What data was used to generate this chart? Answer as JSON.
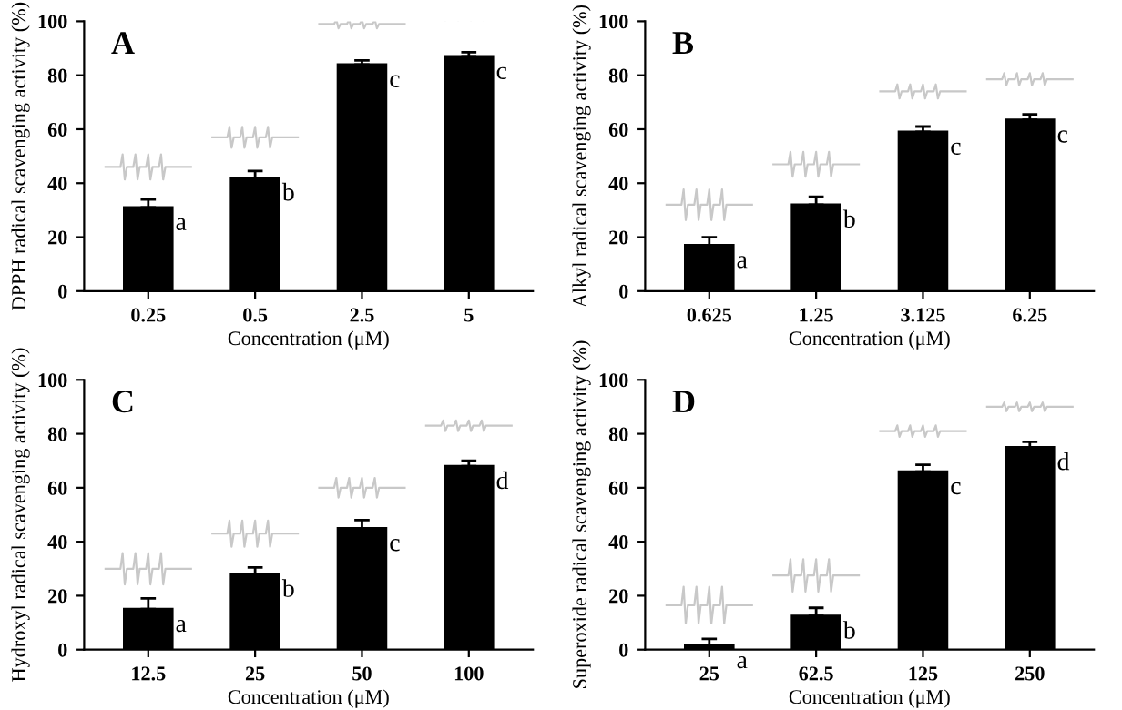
{
  "chart_data": [
    {
      "type": "bar",
      "title": "A",
      "xlabel": "Concentration (μM)",
      "ylabel": "DPPH radical scavenging activity (%)",
      "categories": [
        "0.25",
        "0.5",
        "2.5",
        "5"
      ],
      "values": [
        31,
        42,
        84,
        87
      ],
      "errors": [
        [
          31,
          34
        ],
        [
          42,
          44.5
        ],
        [
          84,
          85.5
        ],
        [
          87,
          88.5
        ]
      ],
      "color": "#000000",
      "ylim": [
        0,
        100
      ],
      "yticks": [
        0,
        20,
        40,
        60,
        80,
        100
      ],
      "grid": false,
      "legend": false,
      "annotations": [
        {
          "text": "a",
          "x": "0.25",
          "y": 31
        },
        {
          "text": "b",
          "x": "0.5",
          "y": 42
        },
        {
          "text": "c",
          "x": "2.5",
          "y": 84
        },
        {
          "text": "c",
          "x": "5",
          "y": 87
        }
      ]
    },
    {
      "type": "bar",
      "title": "B",
      "xlabel": "Concentration (μM)",
      "ylabel": "Alkyl radical scavenging activity (%)",
      "categories": [
        "0.625",
        "1.25",
        "3.125",
        "6.25"
      ],
      "values": [
        17,
        32,
        59,
        63.5
      ],
      "errors": [
        [
          17,
          20
        ],
        [
          32,
          35
        ],
        [
          59,
          61
        ],
        [
          63.5,
          65.5
        ]
      ],
      "color": "#000000",
      "ylim": [
        0,
        100
      ],
      "yticks": [
        0,
        20,
        40,
        60,
        80,
        100
      ],
      "grid": false,
      "legend": false,
      "annotations": [
        {
          "text": "a",
          "x": "0.625",
          "y": 17
        },
        {
          "text": "b",
          "x": "1.25",
          "y": 32
        },
        {
          "text": "c",
          "x": "3.125",
          "y": 59
        },
        {
          "text": "c",
          "x": "6.25",
          "y": 63.5
        }
      ]
    },
    {
      "type": "bar",
      "title": "C",
      "xlabel": "Concentration (μM)",
      "ylabel": "Hydroxyl radical scavenging activity (%)",
      "categories": [
        "12.5",
        "25",
        "50",
        "100"
      ],
      "values": [
        15,
        28,
        45,
        68
      ],
      "errors": [
        [
          15,
          19
        ],
        [
          28,
          30.5
        ],
        [
          45,
          48
        ],
        [
          68,
          70
        ]
      ],
      "color": "#000000",
      "ylim": [
        0,
        100
      ],
      "yticks": [
        0,
        20,
        40,
        60,
        80,
        100
      ],
      "grid": false,
      "legend": false,
      "annotations": [
        {
          "text": "a",
          "x": "12.5",
          "y": 15
        },
        {
          "text": "b",
          "x": "25",
          "y": 28
        },
        {
          "text": "c",
          "x": "50",
          "y": 45
        },
        {
          "text": "d",
          "x": "100",
          "y": 68
        }
      ]
    },
    {
      "type": "bar",
      "title": "D",
      "xlabel": "Concentration (μM)",
      "ylabel": "Superoxide radical scavenging activity (%)",
      "categories": [
        "25",
        "62.5",
        "125",
        "250"
      ],
      "values": [
        1.5,
        12.5,
        66,
        75
      ],
      "errors": [
        [
          1.5,
          4
        ],
        [
          12.5,
          15.5
        ],
        [
          66,
          68.5
        ],
        [
          75,
          77
        ]
      ],
      "color": "#000000",
      "ylim": [
        0,
        100
      ],
      "yticks": [
        0,
        20,
        40,
        60,
        80,
        100
      ],
      "grid": false,
      "legend": false,
      "annotations": [
        {
          "text": "a",
          "x": "25",
          "y": 1.5
        },
        {
          "text": "b",
          "x": "62.5",
          "y": 12.5
        },
        {
          "text": "c",
          "x": "125",
          "y": 66
        },
        {
          "text": "d",
          "x": "250",
          "y": 75
        }
      ]
    }
  ]
}
